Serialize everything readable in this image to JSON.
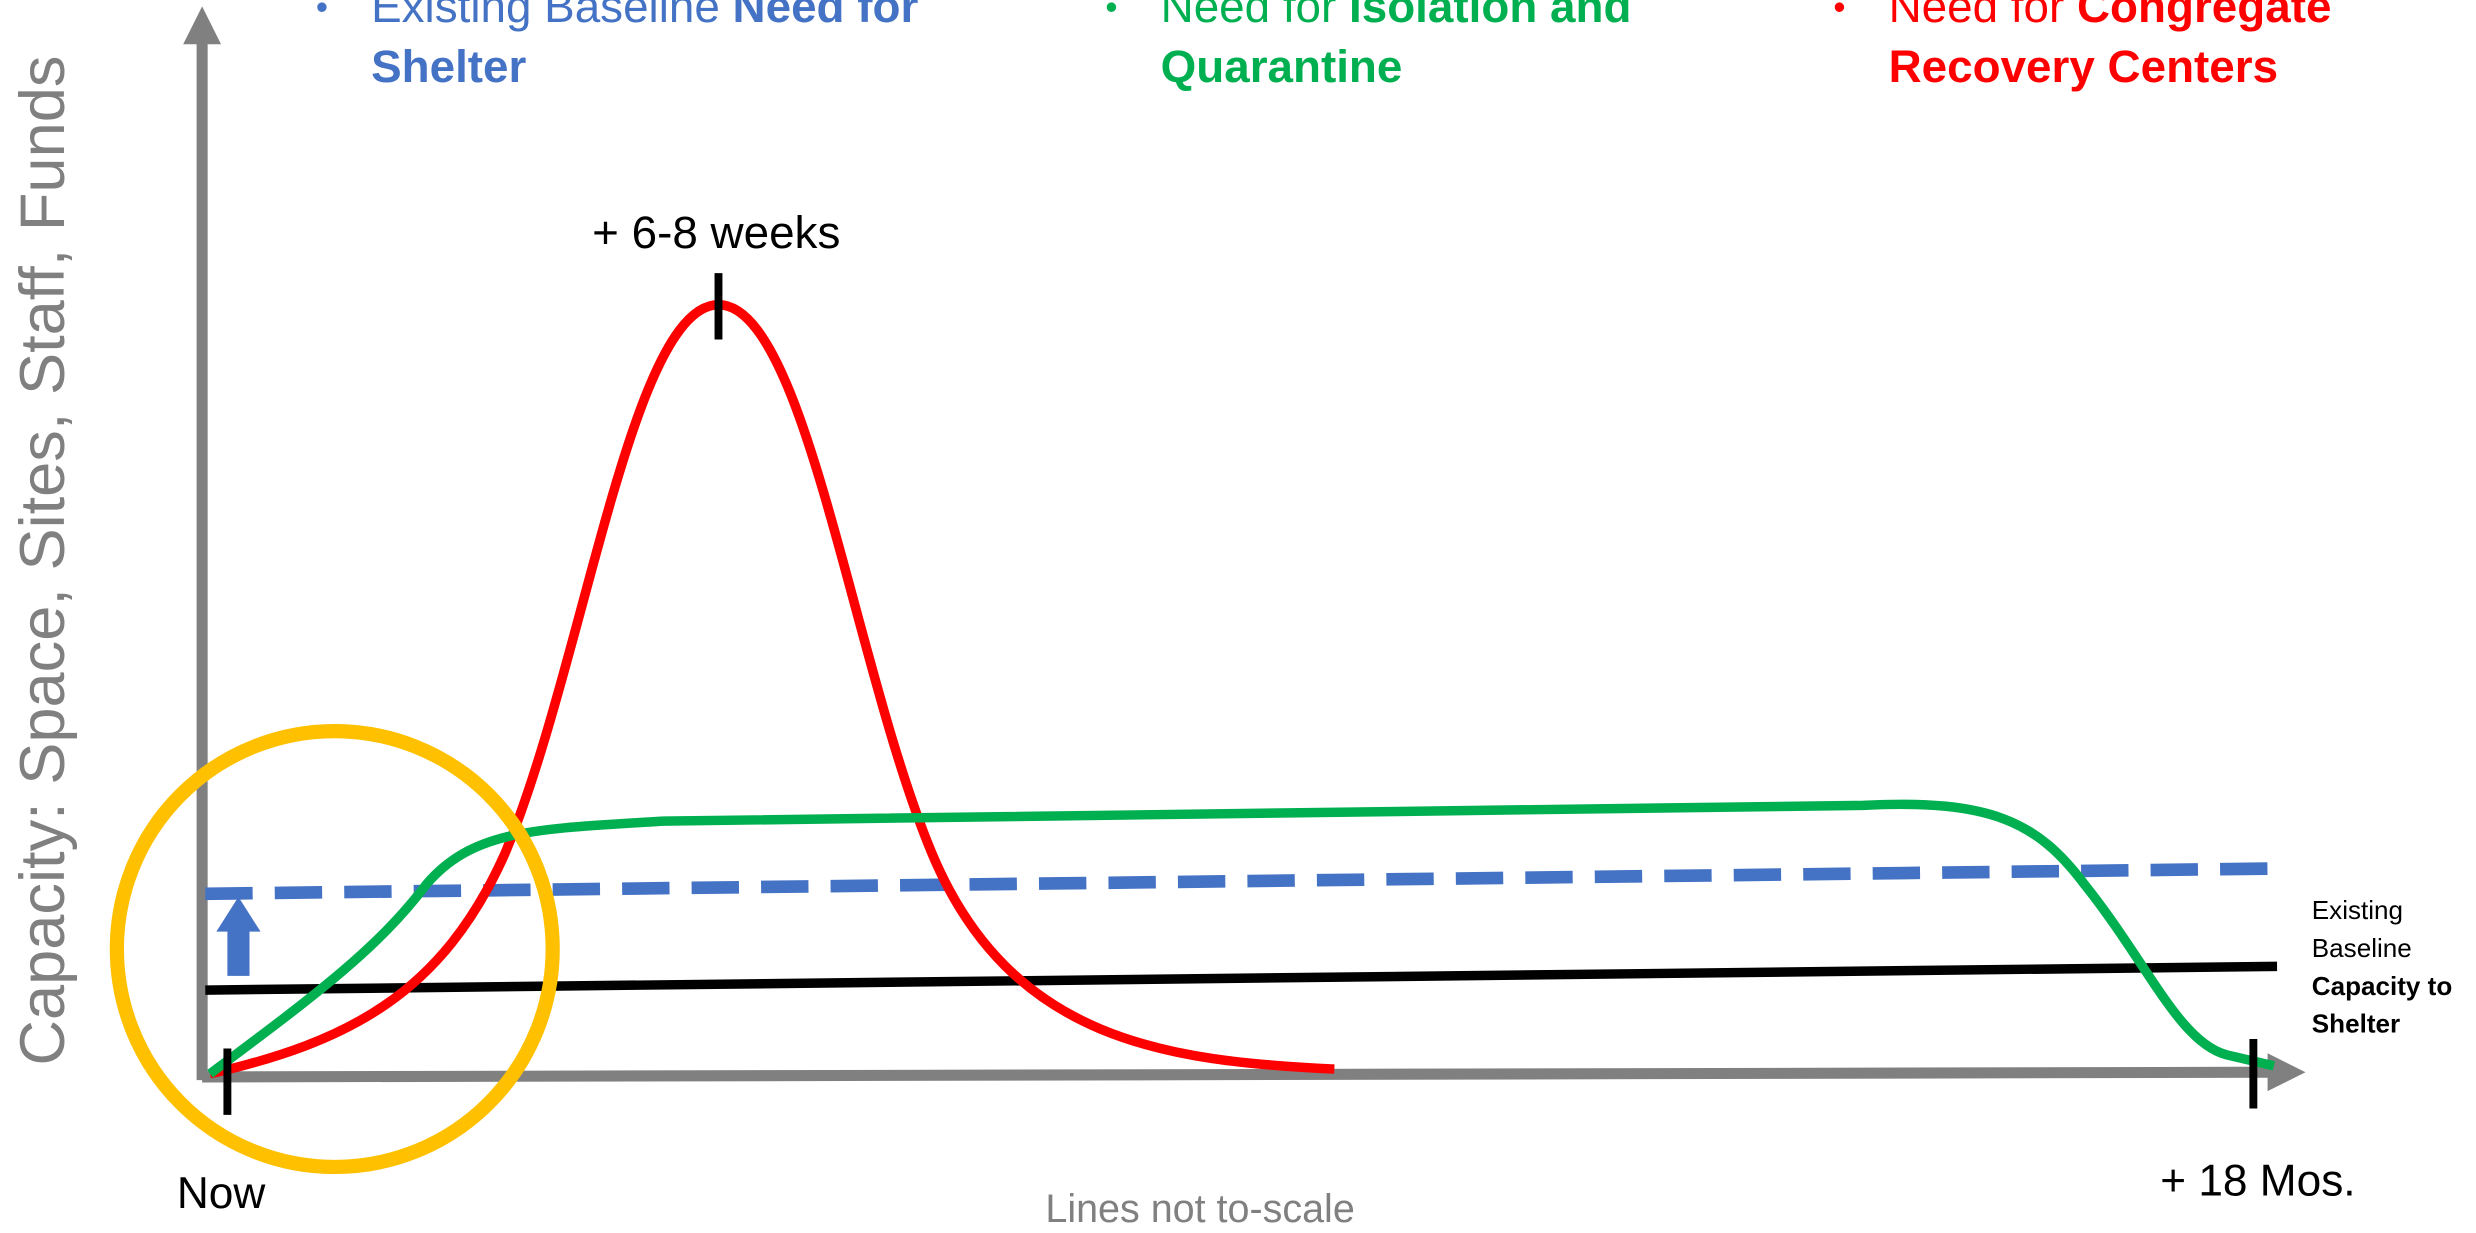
{
  "legend": [
    {
      "plain": "Existing Baseline ",
      "bold": "Need for Shelter",
      "color": "#4472c4"
    },
    {
      "plain": "Need for ",
      "bold": "Isolation and Quarantine",
      "color": "#00b050"
    },
    {
      "plain": "Need for ",
      "bold": "Congregate Recovery Centers",
      "color": "#ff0000"
    }
  ],
  "y_axis_label": "Capacity:  Space, Sites, Staff, Funds",
  "peak_label": "+ 6-8 weeks",
  "start_label": "Now",
  "end_label": "+ 18 Mos.",
  "note": "Lines not to-scale",
  "baseline_label": {
    "plain": "Existing Baseline",
    "bold": "Capacity to Shelter"
  }
}
